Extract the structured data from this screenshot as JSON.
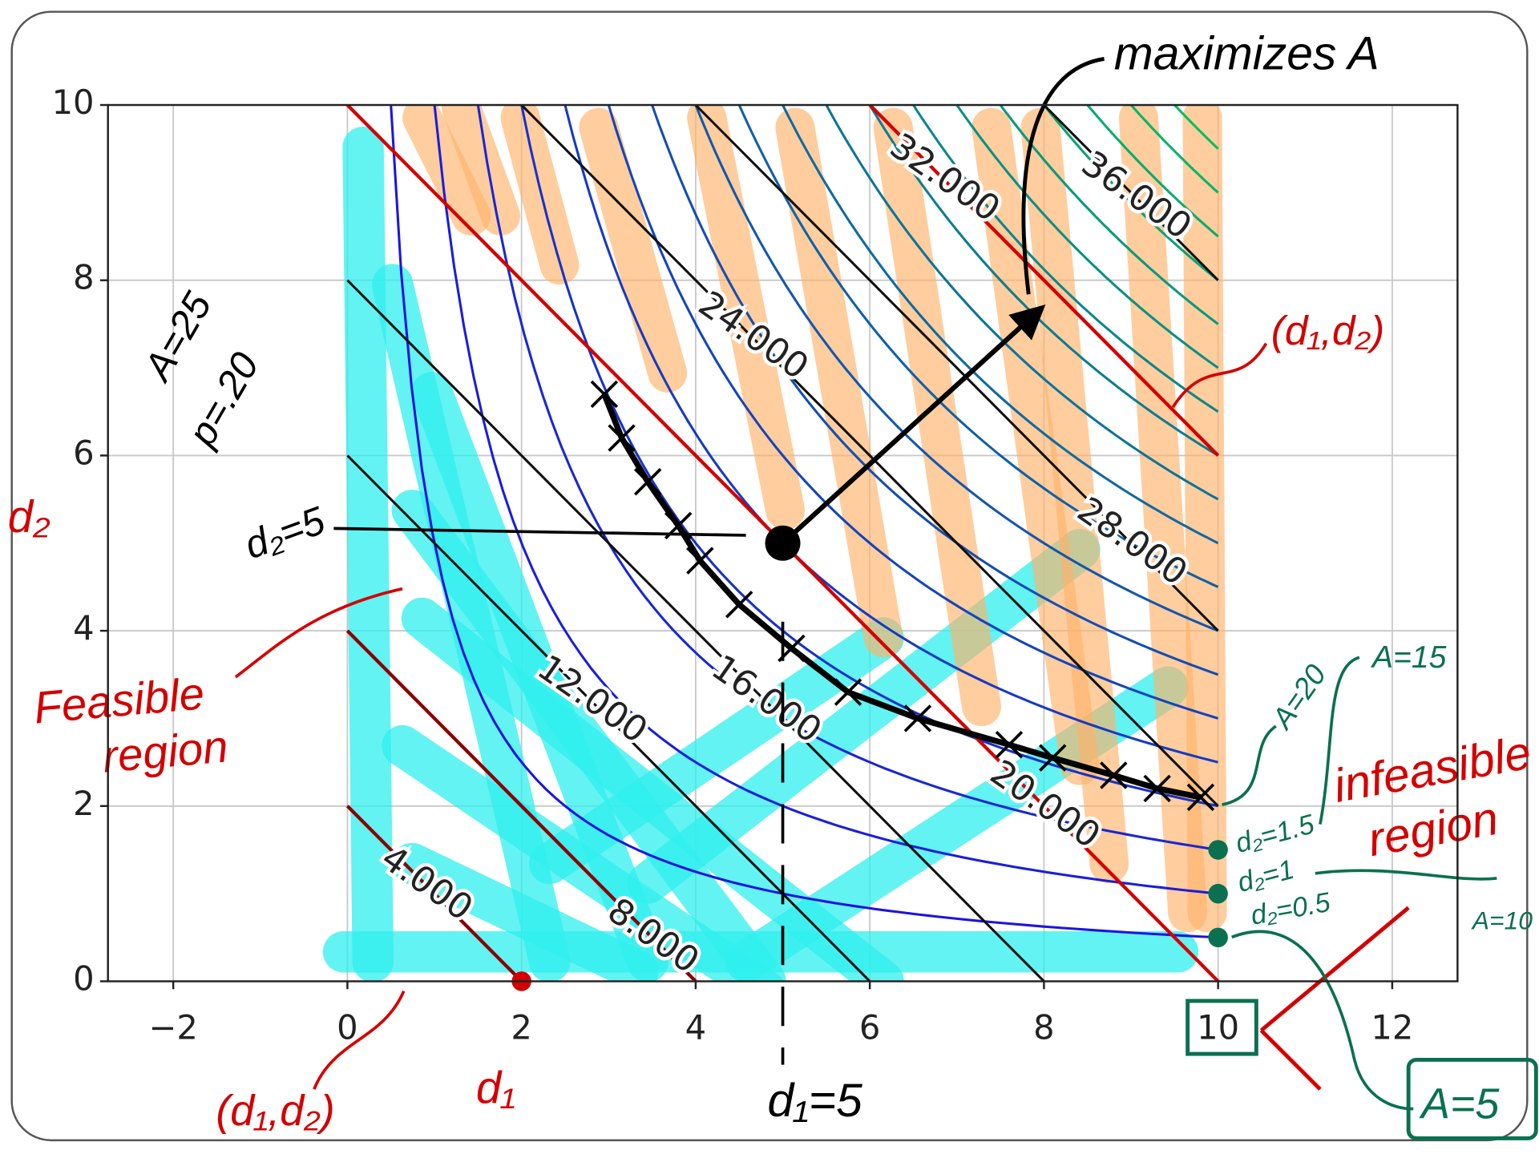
{
  "chart_data": {
    "type": "contour",
    "x_label": "d₁",
    "y_label": "d₂",
    "xlim": [
      -2.75,
      12.75
    ],
    "ylim": [
      0,
      10
    ],
    "xticks": [
      {
        "value": -2,
        "label": "−2"
      },
      0,
      2,
      4,
      6,
      8,
      10,
      12
    ],
    "yticks": [
      0,
      2,
      4,
      6,
      8,
      10
    ],
    "grid": true,
    "line_color": "#111111",
    "budget_lines": [
      {
        "sum": 2,
        "label": "4.000"
      },
      {
        "sum": 4,
        "label": "8.000"
      },
      {
        "sum": 6,
        "label": "12.000"
      },
      {
        "sum": 8,
        "label": "16.000"
      },
      {
        "sum": 10,
        "label": "20.000"
      },
      {
        "sum": 12,
        "label": "24.000"
      },
      {
        "sum": 14,
        "label": "28.000"
      },
      {
        "sum": 16,
        "label": "32.000"
      },
      {
        "sum": 18,
        "label": "36.000"
      }
    ],
    "hyperbolas": {
      "levels": [
        5,
        10,
        15,
        20,
        25,
        30,
        35,
        40,
        45,
        50,
        55,
        60,
        65,
        70,
        75,
        80,
        85,
        90,
        95
      ],
      "colors": [
        "#1c14e0",
        "#00c060"
      ]
    },
    "constraint_lines": [
      {
        "sum": 2,
        "color": "#8b0000"
      },
      {
        "sum": 4,
        "color": "#8b0000"
      },
      {
        "sum": 10,
        "color": "#d40000"
      },
      {
        "sum": 16,
        "color": "#d40000"
      }
    ],
    "crosses": {
      "x": [
        2.95,
        3.15,
        3.45,
        3.8,
        4.05,
        4.5,
        5.1,
        5.75,
        6.55,
        7.6,
        8.1,
        8.8,
        9.3,
        9.8
      ],
      "y": [
        6.7,
        6.2,
        5.7,
        5.2,
        4.8,
        4.3,
        3.8,
        3.3,
        3.0,
        2.7,
        2.55,
        2.35,
        2.2,
        2.1
      ]
    },
    "optimum": {
      "x": 5,
      "y": 5
    },
    "corner_point": {
      "x": 2,
      "y": 0
    },
    "green_points": {
      "x": [
        10,
        10,
        10
      ],
      "y": [
        1.5,
        1,
        0.5
      ]
    },
    "annotations": [
      {
        "text": "maximizes A",
        "color": "#000000"
      },
      {
        "text": "(d₁,d₂)",
        "color": "#d40000"
      },
      {
        "text": "A=25",
        "color": "#000000"
      },
      {
        "text": "p=.20",
        "color": "#000000"
      },
      {
        "text": "d₂=5",
        "color": "#000000"
      },
      {
        "text": "Feasible",
        "color": "#d40000"
      },
      {
        "text": "region",
        "color": "#d40000"
      },
      {
        "text": "infeasible",
        "color": "#d40000"
      },
      {
        "text": "region",
        "color": "#d40000"
      },
      {
        "text": "(d₁,d₂)",
        "color": "#d40000"
      },
      {
        "text": "d₁=5",
        "color": "#000000"
      },
      {
        "text": "A=20",
        "color": "#0a7050"
      },
      {
        "text": "A=15",
        "color": "#0a7050"
      },
      {
        "text": "A=10",
        "color": "#0a7050"
      },
      {
        "text": "A=5",
        "color": "#0a7050"
      },
      {
        "text": "d₂=1.5",
        "color": "#0a7050"
      },
      {
        "text": "d₂=1",
        "color": "#0a7050"
      },
      {
        "text": "d₂=0.5",
        "color": "#0a7050"
      }
    ]
  }
}
